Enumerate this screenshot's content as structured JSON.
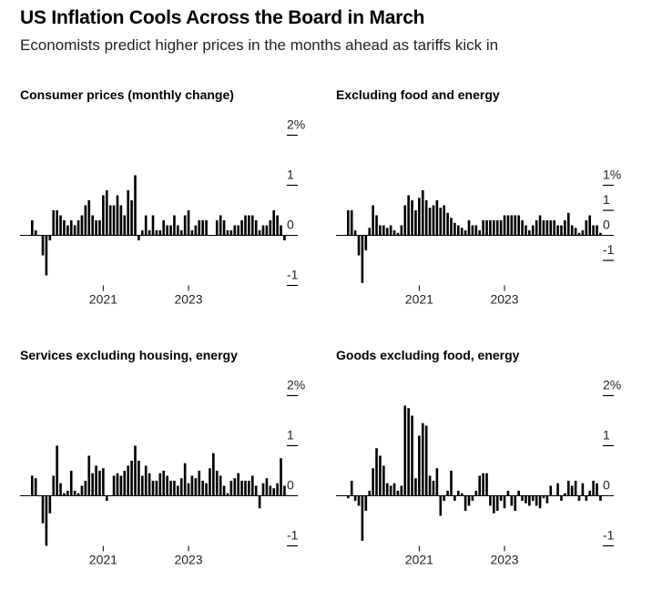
{
  "header": {
    "title": "US Inflation Cools Across the Board in March",
    "subtitle": "Economists predict higher prices in the months ahead as tariffs kick in"
  },
  "colors": {
    "bar": "#000000",
    "axis": "#000000",
    "text": "#222222"
  },
  "chart_data": [
    {
      "type": "bar",
      "title": "Consumer prices (monthly change)",
      "ylim": [
        -1,
        2
      ],
      "yticks": [
        2,
        1,
        0,
        -1
      ],
      "ytick_labels": [
        "2%",
        "1",
        "0",
        "-1"
      ],
      "xtick_labels": [
        "2021",
        "2023"
      ],
      "x_start": "2019-04",
      "x_end": "2025-03",
      "values": [
        0.3,
        0.1,
        0.0,
        -0.4,
        -0.8,
        -0.1,
        0.5,
        0.5,
        0.4,
        0.3,
        0.2,
        0.3,
        0.2,
        0.3,
        0.4,
        0.6,
        0.7,
        0.4,
        0.3,
        0.3,
        0.8,
        0.9,
        0.6,
        0.6,
        0.8,
        0.6,
        0.4,
        0.9,
        0.7,
        1.2,
        -0.1,
        0.1,
        0.4,
        0.1,
        0.4,
        0.1,
        0.1,
        0.3,
        0.2,
        0.2,
        0.4,
        0.2,
        0.1,
        0.4,
        0.5,
        0.1,
        0.2,
        0.3,
        0.3,
        0.3,
        0.0,
        0.0,
        0.3,
        0.4,
        0.3,
        0.1,
        0.1,
        0.2,
        0.2,
        0.3,
        0.4,
        0.4,
        0.4,
        0.3,
        0.1,
        0.2,
        0.2,
        0.3,
        0.5,
        0.4,
        0.2,
        -0.1
      ]
    },
    {
      "type": "bar",
      "title": "Excluding food and energy",
      "ylim": [
        -1,
        1
      ],
      "yticks": [
        1,
        0.5,
        0,
        -0.5
      ],
      "ytick_labels": [
        "1%",
        "1",
        "0",
        "-1"
      ],
      "xtick_labels": [
        "2021",
        "2023"
      ],
      "x_start": "2019-04",
      "x_end": "2025-03",
      "values": [
        0.5,
        0.5,
        0.1,
        -0.4,
        -0.95,
        -0.3,
        0.15,
        0.6,
        0.4,
        0.2,
        0.2,
        0.15,
        0.2,
        0.1,
        0.05,
        0.2,
        0.6,
        0.8,
        0.7,
        0.5,
        0.75,
        0.9,
        0.7,
        0.55,
        0.6,
        0.7,
        0.55,
        0.6,
        0.45,
        0.35,
        0.25,
        0.2,
        0.15,
        0.1,
        0.3,
        0.2,
        0.2,
        0.1,
        0.3,
        0.3,
        0.3,
        0.3,
        0.3,
        0.3,
        0.4,
        0.4,
        0.4,
        0.4,
        0.4,
        0.3,
        0.2,
        0.1,
        0.2,
        0.3,
        0.4,
        0.3,
        0.3,
        0.3,
        0.3,
        0.2,
        0.2,
        0.3,
        0.45,
        0.2,
        0.15,
        0.05,
        0.1,
        0.3,
        0.4,
        0.2,
        0.2,
        0.05
      ]
    },
    {
      "type": "bar",
      "title": "Services excluding housing, energy",
      "ylim": [
        -1,
        2
      ],
      "yticks": [
        2,
        1,
        0,
        -1
      ],
      "ytick_labels": [
        "2%",
        "1",
        "0",
        "-1"
      ],
      "xtick_labels": [
        "2021",
        "2023"
      ],
      "x_start": "2019-04",
      "x_end": "2025-03",
      "values": [
        0.4,
        0.35,
        0.0,
        -0.55,
        -1.0,
        -0.35,
        0.4,
        1.0,
        0.25,
        0.05,
        0.1,
        0.5,
        0.1,
        0.05,
        0.2,
        0.3,
        0.8,
        0.45,
        0.6,
        0.5,
        0.55,
        -0.1,
        0.0,
        0.4,
        0.45,
        0.4,
        0.5,
        0.6,
        0.7,
        1.0,
        0.7,
        0.4,
        0.6,
        0.45,
        0.3,
        0.3,
        0.45,
        0.5,
        0.4,
        0.3,
        0.3,
        0.2,
        0.35,
        0.65,
        0.25,
        0.4,
        0.35,
        0.5,
        0.3,
        0.25,
        0.55,
        0.85,
        0.5,
        0.4,
        0.2,
        0.05,
        0.3,
        0.35,
        0.45,
        0.3,
        0.3,
        0.3,
        0.4,
        0.2,
        -0.25,
        0.25,
        0.35,
        0.2,
        0.15,
        0.25,
        0.75,
        0.2
      ]
    },
    {
      "type": "bar",
      "title": "Goods excluding food, energy",
      "ylim": [
        -1,
        2
      ],
      "yticks": [
        2,
        1,
        0,
        -1
      ],
      "ytick_labels": [
        "2%",
        "1",
        "0",
        "-1"
      ],
      "xtick_labels": [
        "2021",
        "2023"
      ],
      "x_start": "2019-04",
      "x_end": "2025-03",
      "values": [
        -0.05,
        0.3,
        -0.1,
        -0.2,
        -0.9,
        -0.3,
        0.1,
        0.55,
        0.95,
        0.8,
        0.6,
        0.25,
        0.2,
        0.25,
        0.1,
        0.2,
        1.8,
        1.75,
        1.6,
        0.35,
        1.2,
        1.45,
        1.4,
        0.4,
        0.3,
        0.55,
        -0.4,
        -0.1,
        0.1,
        0.5,
        -0.1,
        0.1,
        0.05,
        -0.3,
        -0.2,
        -0.1,
        0.1,
        0.4,
        0.45,
        0.45,
        -0.2,
        -0.35,
        -0.3,
        -0.1,
        -0.25,
        0.1,
        -0.2,
        -0.3,
        0.1,
        -0.1,
        -0.15,
        -0.2,
        -0.1,
        -0.2,
        -0.25,
        -0.05,
        -0.15,
        0.2,
        0.0,
        0.25,
        -0.1,
        0.05,
        0.3,
        0.2,
        0.3,
        -0.1,
        0.25,
        -0.1,
        0.1,
        0.3,
        0.25,
        -0.1
      ]
    }
  ]
}
